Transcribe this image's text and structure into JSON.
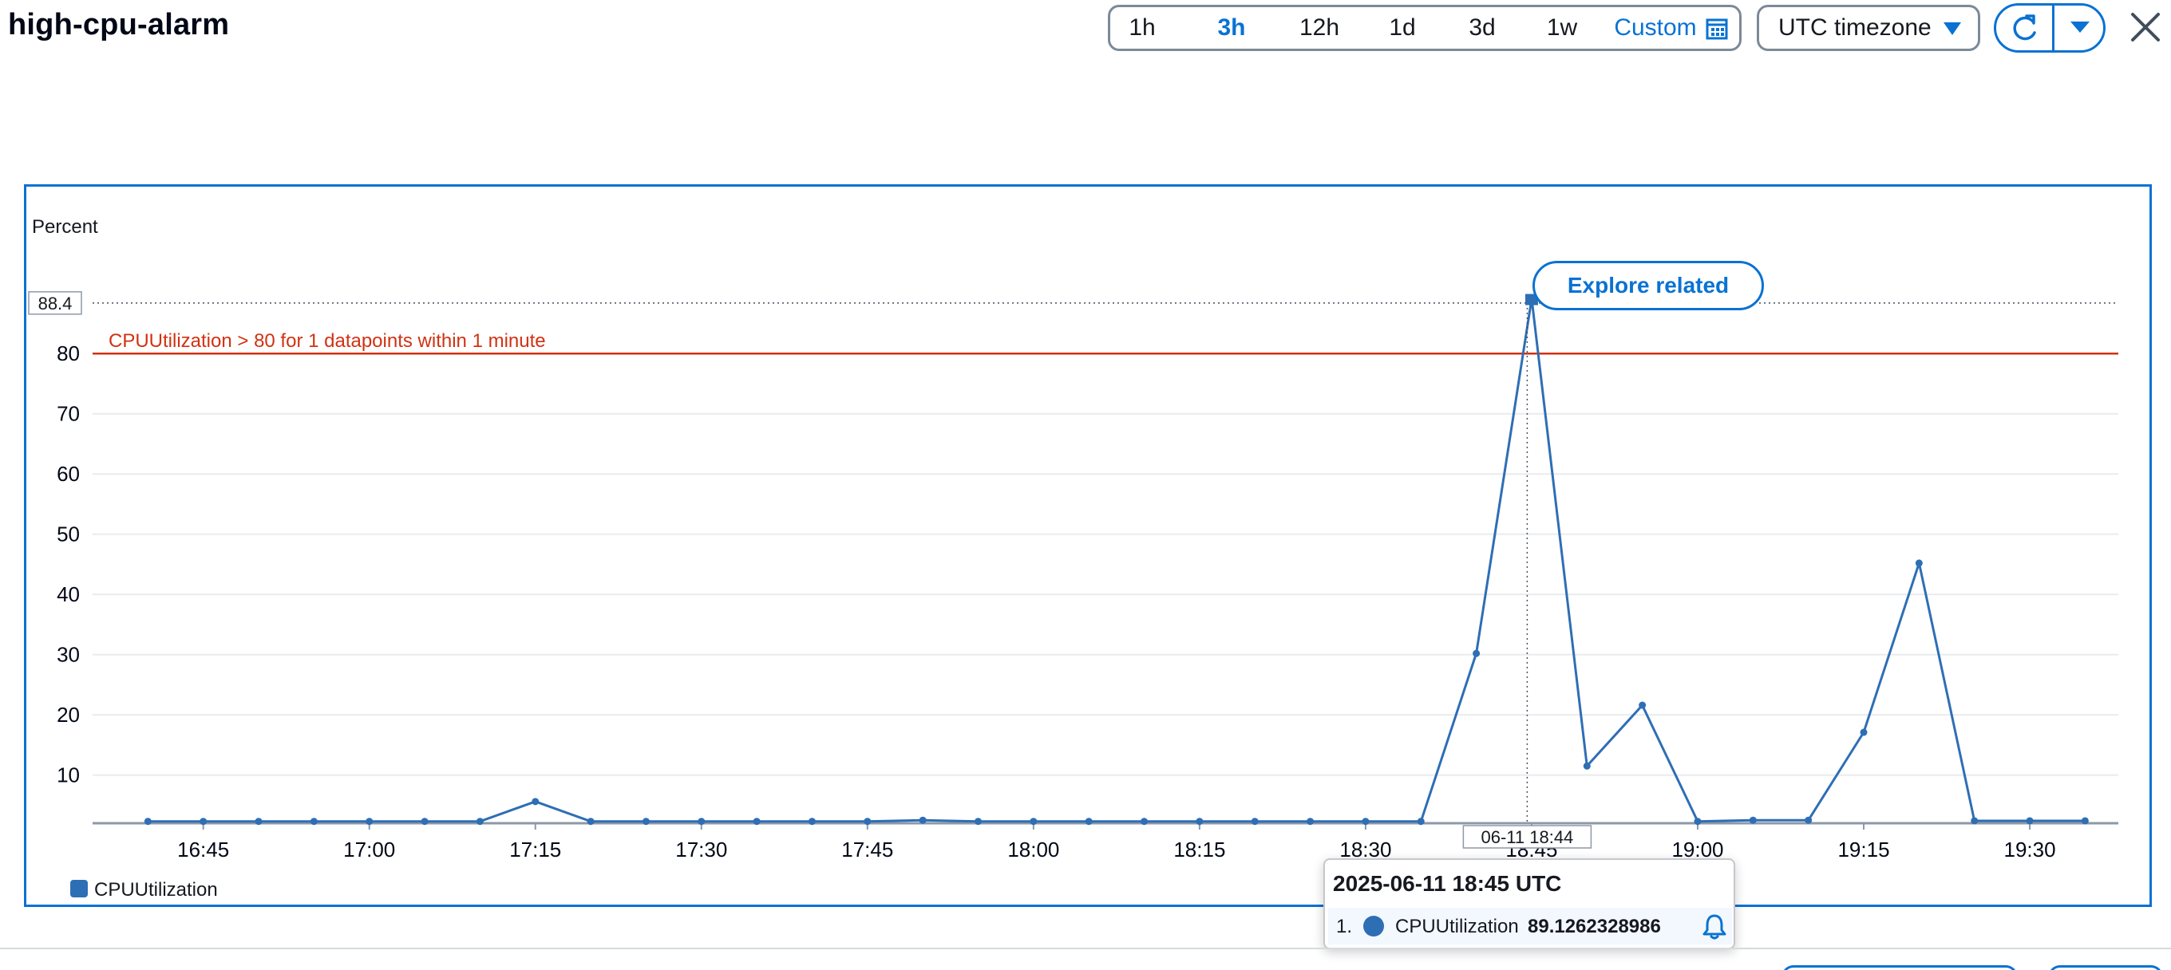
{
  "header": {
    "title": "high-cpu-alarm",
    "ranges": [
      "1h",
      "3h",
      "12h",
      "1d",
      "3d",
      "1w"
    ],
    "active_range": "3h",
    "custom_label": "Custom",
    "timezone": "UTC timezone"
  },
  "colors": {
    "accent": "#0972d3",
    "series": "#2e6eb5",
    "threshold": "#d13212"
  },
  "icons": [
    "calendar-icon",
    "caret-down-icon",
    "refresh-icon",
    "close-icon",
    "bell-icon"
  ],
  "explore_label": "Explore related",
  "tooltip": {
    "title": "2025-06-11 18:45 UTC",
    "rank": "1.",
    "series": "CPUUtilization",
    "value": "89.1262328986"
  },
  "chart_data": {
    "type": "line",
    "ylabel": "Percent",
    "ylim": [
      2,
      95
    ],
    "y_ticks": [
      10,
      20,
      30,
      40,
      50,
      60,
      70,
      80
    ],
    "x_tick_labels": [
      "16:45",
      "17:00",
      "17:15",
      "17:30",
      "17:45",
      "18:00",
      "18:15",
      "18:30",
      "18:45",
      "19:00",
      "19:15",
      "19:30"
    ],
    "x_tick_minutes": [
      1005,
      1020,
      1035,
      1050,
      1065,
      1080,
      1095,
      1110,
      1125,
      1140,
      1155,
      1170
    ],
    "xlim_minutes": [
      995,
      1178
    ],
    "hover_max_label": "88.4",
    "hover_x_label": "06-11 18:44",
    "hover_x_minute": 1124.6,
    "threshold": {
      "value": 80,
      "label": "CPUUtilization > 80 for 1 datapoints within 1 minute"
    },
    "grid": true,
    "legend_position": "bottom-left",
    "series": [
      {
        "name": "CPUUtilization",
        "x_minutes": [
          1000,
          1005,
          1010,
          1015,
          1020,
          1025,
          1030,
          1035,
          1040,
          1045,
          1050,
          1055,
          1060,
          1065,
          1070,
          1075,
          1080,
          1085,
          1090,
          1095,
          1100,
          1105,
          1110,
          1115,
          1120,
          1125,
          1130,
          1135,
          1140,
          1145,
          1150,
          1155,
          1160,
          1165,
          1170,
          1175
        ],
        "values": [
          2.3,
          2.3,
          2.3,
          2.3,
          2.3,
          2.3,
          2.3,
          5.6,
          2.3,
          2.3,
          2.3,
          2.3,
          2.3,
          2.3,
          2.5,
          2.3,
          2.3,
          2.3,
          2.3,
          2.3,
          2.3,
          2.3,
          2.3,
          2.3,
          30.2,
          89.1,
          11.5,
          21.6,
          2.3,
          2.5,
          2.5,
          17.1,
          45.2,
          2.4,
          2.4,
          2.4
        ]
      }
    ]
  }
}
